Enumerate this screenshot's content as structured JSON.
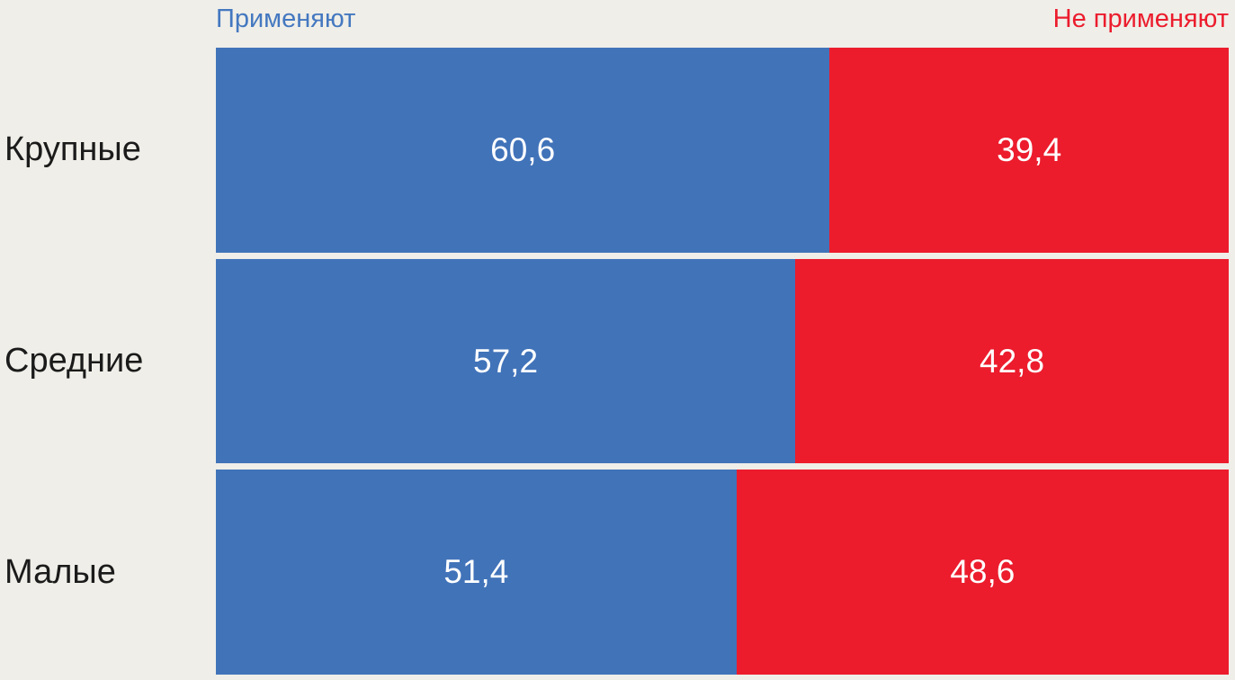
{
  "colors": {
    "background": "#EFEEE8",
    "blue": "#4173B9",
    "red": "#EC1C2D",
    "legend_blue_text": "#4478C0",
    "legend_red_text": "#EC1C2D",
    "category_text": "#1B1B1B",
    "value_text": "#FFFFFF"
  },
  "legend": {
    "left": "Применяют",
    "right": "Не применяют"
  },
  "chart_data": {
    "type": "bar",
    "orientation": "horizontal",
    "stacked": true,
    "stacked_total": 100,
    "title": "",
    "xlabel": "",
    "ylabel": "",
    "xlim": [
      0,
      100
    ],
    "grid": false,
    "legend_position": "top",
    "categories": [
      "Крупные",
      "Средние",
      "Малые"
    ],
    "series": [
      {
        "name": "Применяют",
        "color": "#4173B9",
        "values": [
          60.6,
          57.2,
          51.4
        ]
      },
      {
        "name": "Не применяют",
        "color": "#EC1C2D",
        "values": [
          39.4,
          42.8,
          48.6
        ]
      }
    ],
    "value_labels": [
      [
        "60,6",
        "39,4"
      ],
      [
        "57,2",
        "42,8"
      ],
      [
        "51,4",
        "48,6"
      ]
    ]
  }
}
